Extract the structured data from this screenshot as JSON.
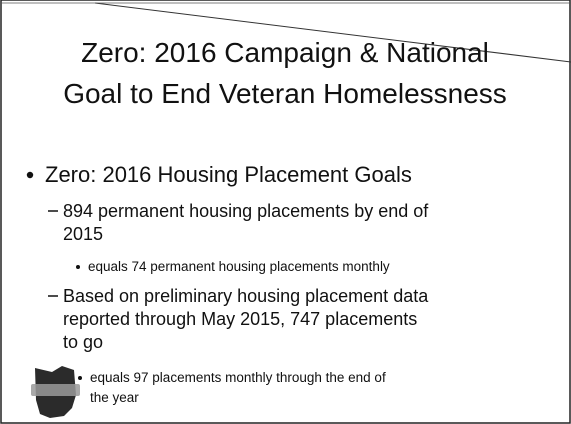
{
  "slide": {
    "title": [
      "Zero: 2016 Campaign & National",
      "Goal to End Veteran Homelessness"
    ],
    "bullets": [
      {
        "text": [
          "Zero: 2016 Housing Placement Goals"
        ],
        "children": [
          {
            "text": [
              "894 permanent housing placements by end of",
              "2015"
            ],
            "children": [
              {
                "text": [
                  "equals 74 permanent housing placements monthly"
                ]
              }
            ]
          },
          {
            "text": [
              "Based on preliminary housing placement data",
              "reported through May 2015, 747 placements",
              "to go"
            ],
            "children": [
              {
                "text": [
                  "equals 97 placements monthly through the end of",
                  "the year"
                ]
              }
            ]
          }
        ]
      }
    ]
  }
}
